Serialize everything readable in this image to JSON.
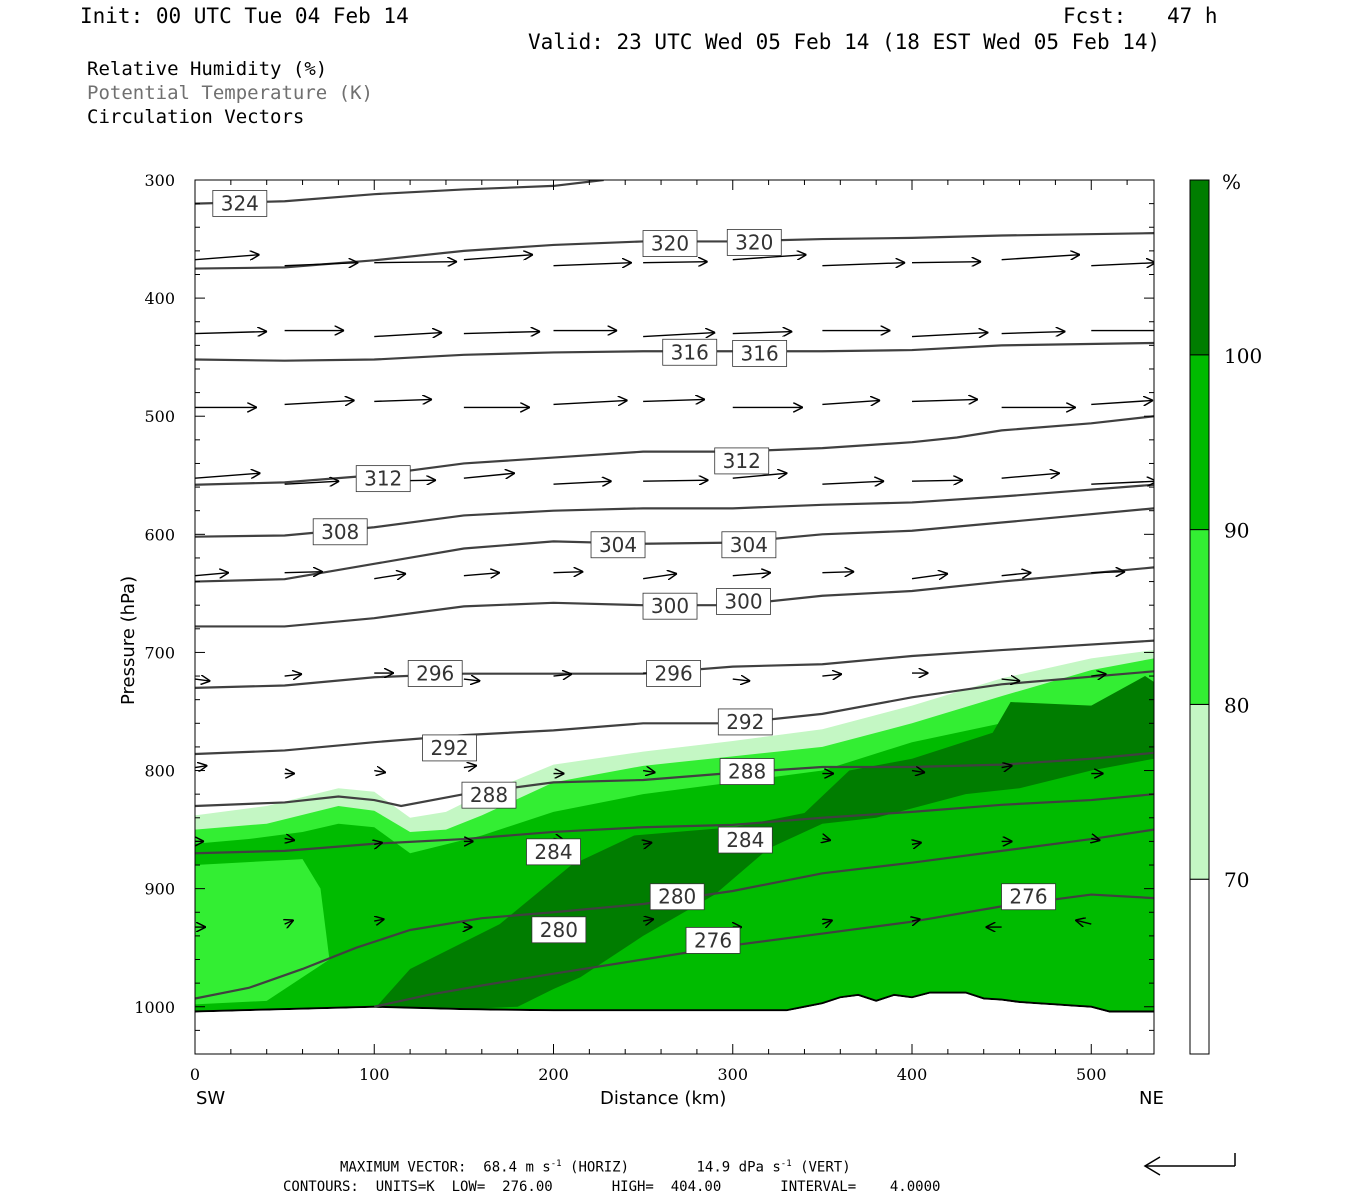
{
  "header": {
    "init": "Init: 00 UTC Tue 04 Feb 14",
    "fcst_label": "Fcst:",
    "fcst_value": "47 h",
    "valid": "Valid: 23 UTC Wed 05 Feb 14 (18 EST Wed 05 Feb 14)"
  },
  "legend": {
    "rh": "Relative Humidity (%)",
    "theta": "Potential Temperature (K)",
    "vectors": "Circulation Vectors"
  },
  "footer": {
    "max_vector_label": "MAXIMUM VECTOR:",
    "horiz_value": "68.4",
    "horiz_units": "m s",
    "horiz_exp": "-1",
    "horiz_tag": "(HORIZ)",
    "vert_value": "14.9",
    "vert_units": "dPa s",
    "vert_exp": "-1",
    "vert_tag": "(VERT)",
    "contours_line": "CONTOURS:  UNITS=K  LOW=  276.00       HIGH=  404.00       INTERVAL=    4.0000"
  },
  "chart_data": {
    "type": "cross-section",
    "xlabel": "Distance (km)",
    "ylabel": "Pressure (hPa)",
    "xlim": [
      0,
      535
    ],
    "ylim": [
      300,
      1040
    ],
    "x_ticks": [
      0,
      100,
      200,
      300,
      400,
      500
    ],
    "y_ticks": [
      300,
      400,
      500,
      600,
      700,
      800,
      900,
      1000
    ],
    "end_labels": {
      "left": "SW",
      "right": "NE"
    },
    "colorbar": {
      "unit": "%",
      "levels": [
        70,
        80,
        90,
        100
      ],
      "colors": [
        "#ffffff",
        "#c4f7c4",
        "#33ee33",
        "#00bb00",
        "#007d00"
      ]
    },
    "theta_contours": [
      {
        "value": 324,
        "points": [
          [
            0,
            320
          ],
          [
            50,
            318
          ],
          [
            100,
            312
          ],
          [
            150,
            308
          ],
          [
            200,
            305
          ],
          [
            228,
            300
          ]
        ],
        "labels": [
          [
            25,
            319
          ]
        ]
      },
      {
        "value": 320,
        "points": [
          [
            0,
            375
          ],
          [
            50,
            374
          ],
          [
            100,
            368
          ],
          [
            150,
            360
          ],
          [
            200,
            355
          ],
          [
            250,
            352
          ],
          [
            300,
            352
          ],
          [
            350,
            350
          ],
          [
            400,
            349
          ],
          [
            450,
            347
          ],
          [
            535,
            345
          ]
        ],
        "labels": [
          [
            265,
            353
          ],
          [
            312,
            352
          ]
        ]
      },
      {
        "value": 316,
        "points": [
          [
            0,
            452
          ],
          [
            50,
            453
          ],
          [
            100,
            452
          ],
          [
            150,
            448
          ],
          [
            200,
            446
          ],
          [
            250,
            445
          ],
          [
            300,
            445
          ],
          [
            350,
            445
          ],
          [
            400,
            444
          ],
          [
            450,
            440
          ],
          [
            535,
            438
          ]
        ],
        "labels": [
          [
            276,
            445
          ],
          [
            315,
            446
          ]
        ]
      },
      {
        "value": 312,
        "points": [
          [
            0,
            558
          ],
          [
            50,
            556
          ],
          [
            100,
            550
          ],
          [
            150,
            540
          ],
          [
            200,
            535
          ],
          [
            250,
            530
          ],
          [
            300,
            530
          ],
          [
            350,
            527
          ],
          [
            400,
            522
          ],
          [
            425,
            518
          ],
          [
            450,
            512
          ],
          [
            500,
            506
          ],
          [
            535,
            500
          ]
        ],
        "labels": [
          [
            105,
            552
          ],
          [
            305,
            537
          ]
        ]
      },
      {
        "value": 308,
        "points": [
          [
            0,
            602
          ],
          [
            50,
            601
          ],
          [
            100,
            594
          ],
          [
            150,
            584
          ],
          [
            200,
            580
          ],
          [
            250,
            578
          ],
          [
            300,
            578
          ],
          [
            350,
            575
          ],
          [
            400,
            573
          ],
          [
            450,
            568
          ],
          [
            535,
            558
          ]
        ],
        "labels": [
          [
            81,
            597
          ]
        ]
      },
      {
        "value": 304,
        "points": [
          [
            0,
            640
          ],
          [
            50,
            638
          ],
          [
            100,
            625
          ],
          [
            150,
            612
          ],
          [
            200,
            606
          ],
          [
            250,
            608
          ],
          [
            300,
            607
          ],
          [
            350,
            600
          ],
          [
            400,
            597
          ],
          [
            450,
            590
          ],
          [
            535,
            578
          ]
        ],
        "labels": [
          [
            236,
            608
          ],
          [
            309,
            608
          ]
        ]
      },
      {
        "value": 300,
        "points": [
          [
            0,
            678
          ],
          [
            50,
            678
          ],
          [
            100,
            671
          ],
          [
            150,
            661
          ],
          [
            200,
            658
          ],
          [
            250,
            660
          ],
          [
            300,
            660
          ],
          [
            350,
            652
          ],
          [
            400,
            648
          ],
          [
            450,
            640
          ],
          [
            535,
            628
          ]
        ],
        "labels": [
          [
            265,
            660
          ],
          [
            306,
            656
          ]
        ]
      },
      {
        "value": 296,
        "points": [
          [
            0,
            730
          ],
          [
            50,
            728
          ],
          [
            100,
            721
          ],
          [
            150,
            718
          ],
          [
            200,
            718
          ],
          [
            250,
            718
          ],
          [
            300,
            712
          ],
          [
            350,
            710
          ],
          [
            400,
            703
          ],
          [
            450,
            698
          ],
          [
            535,
            690
          ]
        ],
        "labels": [
          [
            134,
            717
          ],
          [
            267,
            717
          ]
        ]
      },
      {
        "value": 292,
        "points": [
          [
            0,
            786
          ],
          [
            50,
            783
          ],
          [
            100,
            776
          ],
          [
            150,
            770
          ],
          [
            200,
            766
          ],
          [
            250,
            760
          ],
          [
            300,
            760
          ],
          [
            350,
            752
          ],
          [
            400,
            738
          ],
          [
            450,
            727
          ],
          [
            535,
            716
          ]
        ],
        "labels": [
          [
            142,
            780
          ],
          [
            307,
            758
          ]
        ]
      },
      {
        "value": 288,
        "points": [
          [
            0,
            830
          ],
          [
            50,
            827
          ],
          [
            80,
            822
          ],
          [
            100,
            825
          ],
          [
            115,
            830
          ],
          [
            150,
            820
          ],
          [
            200,
            810
          ],
          [
            250,
            808
          ],
          [
            300,
            802
          ],
          [
            350,
            797
          ],
          [
            400,
            797
          ],
          [
            450,
            795
          ],
          [
            500,
            790
          ],
          [
            535,
            785
          ]
        ],
        "labels": [
          [
            164,
            820
          ],
          [
            308,
            800
          ]
        ]
      },
      {
        "value": 284,
        "points": [
          [
            0,
            870
          ],
          [
            50,
            868
          ],
          [
            100,
            862
          ],
          [
            150,
            858
          ],
          [
            200,
            852
          ],
          [
            250,
            848
          ],
          [
            300,
            846
          ],
          [
            350,
            840
          ],
          [
            400,
            835
          ],
          [
            450,
            829
          ],
          [
            500,
            825
          ],
          [
            535,
            820
          ]
        ],
        "labels": [
          [
            200,
            868
          ],
          [
            307,
            858
          ]
        ]
      },
      {
        "value": 280,
        "points": [
          [
            0,
            993
          ],
          [
            30,
            984
          ],
          [
            60,
            968
          ],
          [
            90,
            950
          ],
          [
            120,
            935
          ],
          [
            160,
            925
          ],
          [
            200,
            920
          ],
          [
            250,
            913
          ],
          [
            300,
            902
          ],
          [
            350,
            887
          ],
          [
            400,
            878
          ],
          [
            450,
            868
          ],
          [
            500,
            858
          ],
          [
            535,
            850
          ]
        ],
        "labels": [
          [
            203,
            934
          ],
          [
            269,
            906
          ]
        ]
      },
      {
        "value": 276,
        "points": [
          [
            100,
            1000
          ],
          [
            130,
            990
          ],
          [
            160,
            982
          ],
          [
            200,
            972
          ],
          [
            250,
            960
          ],
          [
            300,
            948
          ],
          [
            350,
            938
          ],
          [
            400,
            928
          ],
          [
            450,
            915
          ],
          [
            500,
            905
          ],
          [
            535,
            908
          ]
        ],
        "labels": [
          [
            289,
            943
          ],
          [
            465,
            906
          ]
        ]
      }
    ],
    "surface_pressure": [
      [
        0,
        1004
      ],
      [
        50,
        1002
      ],
      [
        100,
        1000
      ],
      [
        150,
        1002
      ],
      [
        200,
        1003
      ],
      [
        250,
        1003
      ],
      [
        300,
        1003
      ],
      [
        330,
        1003
      ],
      [
        340,
        1000
      ],
      [
        350,
        997
      ],
      [
        360,
        992
      ],
      [
        370,
        990
      ],
      [
        380,
        995
      ],
      [
        390,
        990
      ],
      [
        400,
        992
      ],
      [
        410,
        988
      ],
      [
        420,
        988
      ],
      [
        430,
        988
      ],
      [
        440,
        993
      ],
      [
        450,
        994
      ],
      [
        460,
        996
      ],
      [
        470,
        997
      ],
      [
        480,
        998
      ],
      [
        490,
        999
      ],
      [
        500,
        1000
      ],
      [
        510,
        1004
      ],
      [
        520,
        1004
      ],
      [
        535,
        1004
      ]
    ]
  }
}
